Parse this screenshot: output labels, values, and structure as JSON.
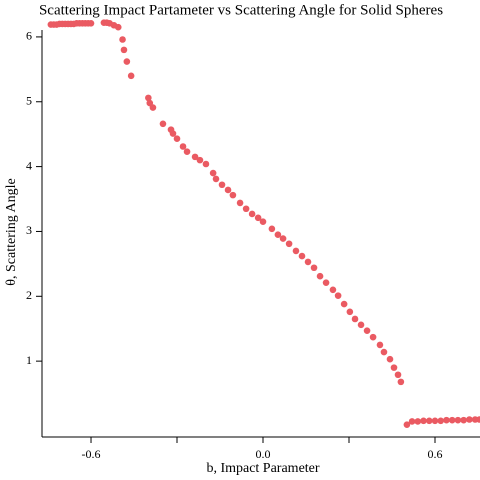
{
  "chart_data": {
    "type": "scatter",
    "title": "Scattering Impact Partameter vs Scattering Angle for Solid Spheres",
    "x_label": "b, Impact Parameter",
    "y_label": "θ, Scattering Angle",
    "color": "#ea5a62",
    "xlim": [
      -0.771,
      0.757
    ],
    "ylim": [
      -0.17,
      6.23
    ],
    "xticks": [
      -0.6,
      {
        "value": 0,
        "label": "0.0"
      },
      0.6
    ],
    "minor_xticks": [
      -0.3,
      0.3
    ],
    "yticks": [
      1,
      2,
      3,
      4,
      5,
      6
    ],
    "x": [
      -0.74,
      -0.73,
      -0.72,
      -0.71,
      -0.7,
      -0.69,
      -0.68,
      -0.67,
      -0.66,
      -0.65,
      -0.64,
      -0.63,
      -0.62,
      -0.61,
      -0.6,
      -0.555,
      -0.545,
      -0.535,
      -0.52,
      -0.505,
      -0.49,
      -0.485,
      -0.475,
      -0.46,
      -0.4,
      -0.395,
      -0.384,
      -0.349,
      -0.321,
      -0.314,
      -0.3,
      -0.279,
      -0.265,
      -0.237,
      -0.22,
      -0.199,
      -0.174,
      -0.164,
      -0.143,
      -0.122,
      -0.105,
      -0.08,
      -0.059,
      -0.038,
      -0.017,
      0.0,
      0.031,
      0.052,
      0.07,
      0.091,
      0.115,
      0.136,
      0.157,
      0.178,
      0.199,
      0.22,
      0.244,
      0.262,
      0.283,
      0.303,
      0.321,
      0.342,
      0.363,
      0.384,
      0.408,
      0.422,
      0.443,
      0.457,
      0.471,
      0.481,
      0.502,
      0.52,
      0.54,
      0.56,
      0.58,
      0.6,
      0.62,
      0.64,
      0.66,
      0.68,
      0.7,
      0.72,
      0.74,
      0.755
    ],
    "values": [
      6.19,
      6.19,
      6.19,
      6.2,
      6.2,
      6.2,
      6.2,
      6.2,
      6.2,
      6.21,
      6.21,
      6.21,
      6.21,
      6.21,
      6.21,
      6.22,
      6.22,
      6.21,
      6.18,
      6.15,
      5.96,
      5.8,
      5.62,
      5.4,
      5.06,
      4.98,
      4.91,
      4.66,
      4.57,
      4.51,
      4.43,
      4.31,
      4.23,
      4.15,
      4.1,
      4.04,
      3.9,
      3.81,
      3.72,
      3.64,
      3.56,
      3.44,
      3.35,
      3.27,
      3.21,
      3.15,
      3.04,
      2.95,
      2.89,
      2.81,
      2.7,
      2.62,
      2.53,
      2.44,
      2.31,
      2.21,
      2.1,
      2.01,
      1.88,
      1.76,
      1.65,
      1.56,
      1.47,
      1.37,
      1.25,
      1.14,
      1.03,
      0.9,
      0.79,
      0.68,
      0.02,
      0.07,
      0.07,
      0.08,
      0.08,
      0.08,
      0.08,
      0.09,
      0.09,
      0.09,
      0.09,
      0.1,
      0.1,
      0.1
    ]
  }
}
